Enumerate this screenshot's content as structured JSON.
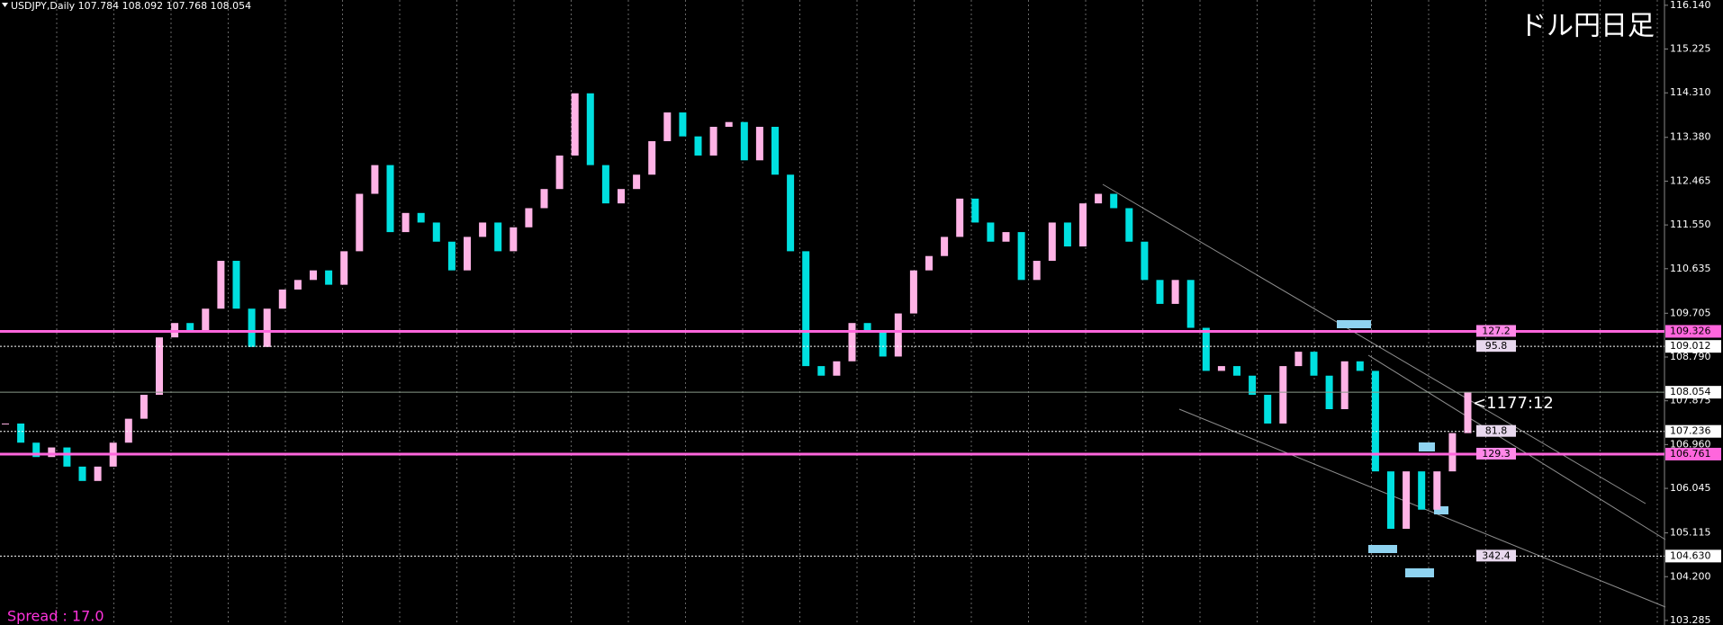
{
  "chart_data": {
    "type": "candlestick",
    "title": "USDJPY,Daily 107.784 108.092 107.768 108.054",
    "subtitle": "ドル円日足",
    "footer": "Spread : 17.0",
    "annotation": "<1177:12",
    "up_color": "#ffb3e6",
    "down_color": "#00e0e0",
    "close": [
      107.4,
      107.0,
      106.7,
      106.9,
      106.5,
      106.2,
      106.5,
      107.0,
      107.5,
      108.0,
      109.2,
      109.5,
      109.3,
      109.8,
      110.8,
      109.8,
      109.0,
      109.8,
      110.2,
      110.4,
      110.6,
      110.3,
      111.0,
      112.2,
      112.8,
      111.4,
      111.8,
      111.6,
      111.2,
      110.6,
      111.3,
      111.6,
      111.0,
      111.5,
      111.9,
      112.3,
      113.0,
      114.3,
      112.8,
      112.0,
      112.3,
      112.6,
      113.3,
      113.9,
      113.4,
      113.0,
      113.6,
      113.7,
      112.9,
      113.6,
      112.6,
      111.0,
      108.6,
      108.4,
      108.7,
      109.5,
      109.3,
      108.8,
      109.7,
      110.6,
      110.9,
      111.3,
      112.1,
      111.6,
      111.2,
      111.4,
      110.4,
      110.8,
      111.6,
      111.1,
      112.0,
      112.2,
      111.9,
      111.2,
      110.4,
      109.9,
      110.4,
      109.4,
      108.5,
      108.6,
      108.4,
      108.0,
      107.4,
      108.6,
      108.9,
      108.4,
      107.7,
      108.7,
      108.5,
      106.4,
      105.2,
      106.4,
      105.6,
      106.4,
      107.2,
      108.054
    ],
    "ylim": [
      103.19,
      116.25
    ],
    "yticks": [
      {
        "value": 116.14,
        "label": "116.140"
      },
      {
        "value": 115.225,
        "label": "115.225"
      },
      {
        "value": 114.31,
        "label": "114.310"
      },
      {
        "value": 113.38,
        "label": "113.380"
      },
      {
        "value": 112.465,
        "label": "112.465"
      },
      {
        "value": 111.55,
        "label": "111.550"
      },
      {
        "value": 110.635,
        "label": "110.635"
      },
      {
        "value": 109.705,
        "label": "109.705"
      },
      {
        "value": 108.79,
        "label": "108.790"
      },
      {
        "value": 107.875,
        "label": "107.875"
      },
      {
        "value": 106.96,
        "label": "106.960"
      },
      {
        "value": 106.045,
        "label": "106.045"
      },
      {
        "value": 105.115,
        "label": "105.115"
      },
      {
        "value": 104.2,
        "label": "104.200"
      },
      {
        "value": 103.285,
        "label": "103.285"
      }
    ],
    "levels": [
      {
        "value": 109.326,
        "label": "109.326",
        "note": "127.2",
        "color": "#ff66dd",
        "style": "solid"
      },
      {
        "value": 109.012,
        "label": "109.012",
        "note": "95.8",
        "color": "#ffffff",
        "style": "dotted"
      },
      {
        "value": 108.054,
        "label": "108.054",
        "color": "#8a9a8a",
        "style": "thin"
      },
      {
        "value": 107.236,
        "label": "107.236",
        "note": "81.8",
        "color": "#ffffff",
        "style": "dotted"
      },
      {
        "value": 106.761,
        "label": "106.761",
        "note": "129.3",
        "color": "#ff66dd",
        "style": "solid"
      },
      {
        "value": 104.63,
        "label": "104.630",
        "note": "342.4",
        "color": "#ffffff",
        "style": "dotted"
      }
    ]
  }
}
